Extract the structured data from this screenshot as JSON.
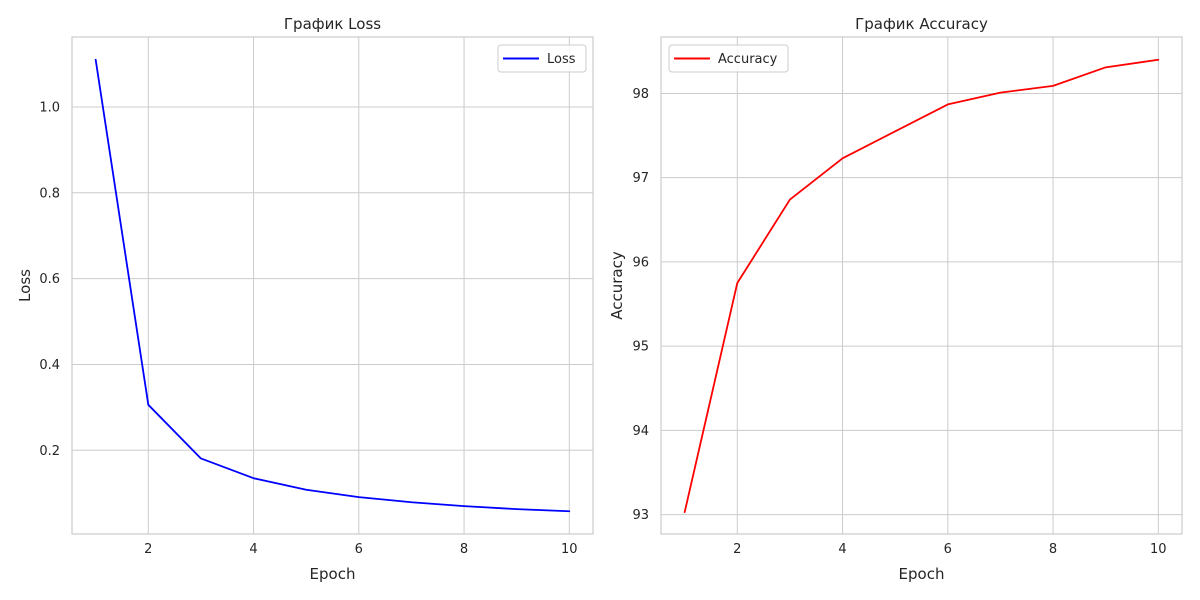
{
  "chart_data": [
    {
      "type": "line",
      "title": "График Loss",
      "xlabel": "Epoch",
      "ylabel": "Loss",
      "x": [
        1,
        2,
        3,
        4,
        5,
        6,
        7,
        8,
        9,
        10
      ],
      "series": [
        {
          "name": "Loss",
          "color": "#0000ff",
          "values": [
            1.11,
            0.306,
            0.181,
            0.135,
            0.108,
            0.091,
            0.079,
            0.07,
            0.063,
            0.058
          ]
        }
      ],
      "xlim": [
        0.55,
        10.45
      ],
      "ylim": [
        0.005,
        1.163
      ],
      "xticks": [
        2,
        4,
        6,
        8,
        10
      ],
      "xtick_labels": [
        "2",
        "4",
        "6",
        "8",
        "10"
      ],
      "yticks": [
        0.2,
        0.4,
        0.6,
        0.8,
        1.0
      ],
      "ytick_labels": [
        "0.2",
        "0.4",
        "0.6",
        "0.8",
        "1.0"
      ],
      "grid": true,
      "legend": "upper right"
    },
    {
      "type": "line",
      "title": "График Accuracy",
      "xlabel": "Epoch",
      "ylabel": "Accuracy",
      "x": [
        1,
        2,
        3,
        4,
        5,
        6,
        7,
        8,
        9,
        10
      ],
      "series": [
        {
          "name": "Accuracy",
          "color": "#ff0000",
          "values": [
            93.03,
            95.75,
            96.74,
            97.23,
            97.55,
            97.87,
            98.01,
            98.09,
            98.31,
            98.4
          ]
        }
      ],
      "xlim": [
        0.55,
        10.45
      ],
      "ylim": [
        92.77,
        98.67
      ],
      "xticks": [
        2,
        4,
        6,
        8,
        10
      ],
      "xtick_labels": [
        "2",
        "4",
        "6",
        "8",
        "10"
      ],
      "yticks": [
        93,
        94,
        95,
        96,
        97,
        98
      ],
      "ytick_labels": [
        "93",
        "94",
        "95",
        "96",
        "97",
        "98"
      ],
      "grid": true,
      "legend": "upper left"
    }
  ]
}
